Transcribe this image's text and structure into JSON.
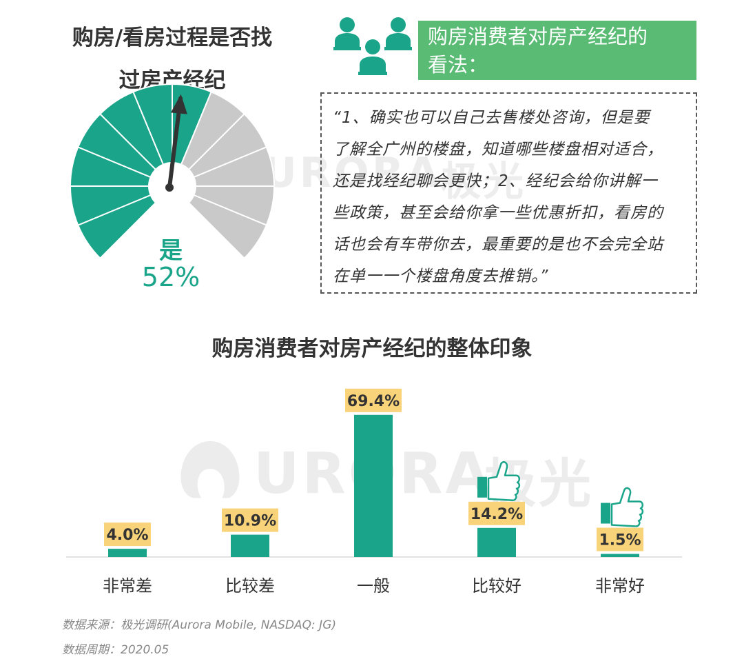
{
  "gauge": {
    "title_line1": "购房/看房过程是否找",
    "title_line2": "过房产经纪",
    "answer": "是",
    "percent_label": "52%",
    "value": 0.52,
    "accent": "#1aa58a",
    "rest": "#c9c9c9"
  },
  "opinion": {
    "banner_line1": "购房消费者对房产经纪的",
    "banner_line2": "看法：",
    "icon": "people-group-icon",
    "quote_lines": [
      "“1、确实也可以自己去售楼处咨询，但是要",
      "了解全广州的楼盘，知道哪些楼盘相对适合，",
      "还是找经纪聊会更快；2、经纪会给你讲解一",
      "些政策，甚至会给你拿一些优惠折扣，看房的",
      "话也会有车带你去，最重要的是也不会完全站",
      "在单一一个楼盘角度去推销。”"
    ]
  },
  "watermark": {
    "brand": "URORA",
    "cn": "极光"
  },
  "chart_data": {
    "type": "bar",
    "title": "购房消费者对房产经纪的整体印象",
    "categories": [
      "非常差",
      "比较差",
      "一般",
      "比较好",
      "非常好"
    ],
    "values": [
      4.0,
      10.9,
      69.4,
      14.2,
      1.5
    ],
    "value_labels": [
      "4.0%",
      "10.9%",
      "69.4%",
      "14.2%",
      "1.5%"
    ],
    "ylim": [
      0,
      70
    ],
    "bar_color": "#1aa58a",
    "label_bg": "#f9d37a",
    "thumbs_up_on": [
      "比较好",
      "非常好"
    ]
  },
  "footer": {
    "source": "数据来源：极光调研(Aurora Mobile, NASDAQ: JG)",
    "period": "数据周期：2020.05"
  }
}
